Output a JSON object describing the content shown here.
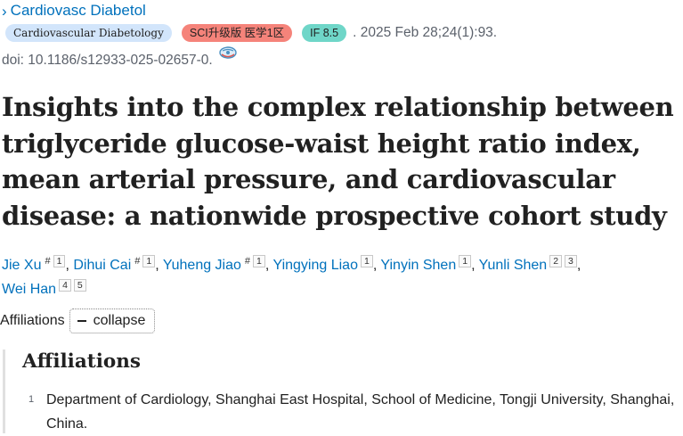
{
  "journal": {
    "chevron": "›",
    "link": "Cardiovasc Diabetol"
  },
  "badges": {
    "journal": "Cardiovascular Diabetology",
    "sci": "SCI升级版 医学1区",
    "if": "IF 8.5"
  },
  "pubdate": ". 2025 Feb 28;24(1):93.",
  "doi": "doi: 10.1186/s12933-025-02657-0.",
  "title": "Insights into the complex relationship between triglyceride glucose-waist height ratio index, mean arterial pressure, and cardiovascular disease: a nationwide prospective cohort study",
  "authors": [
    {
      "name": "Jie Xu",
      "marks": [
        "#",
        "1"
      ]
    },
    {
      "name": "Dihui Cai",
      "marks": [
        "#",
        "1"
      ]
    },
    {
      "name": "Yuheng Jiao",
      "marks": [
        "#",
        "1"
      ]
    },
    {
      "name": "Yingying Liao",
      "marks": [
        "1"
      ]
    },
    {
      "name": "Yinyin Shen",
      "marks": [
        "1"
      ]
    },
    {
      "name": "Yunli Shen",
      "marks": [
        "2",
        "3"
      ]
    },
    {
      "name": "Wei Han",
      "marks": [
        "4",
        "5"
      ]
    }
  ],
  "affiliations_label": "Affiliations",
  "collapse_label": "collapse",
  "affiliations_heading": "Affiliations",
  "affiliations": [
    {
      "num": "1",
      "text": "Department of Cardiology, Shanghai East Hospital, School of Medicine, Tongji University, Shanghai, China."
    }
  ],
  "icons": {
    "doi": "cite-icon",
    "chevron": "chevron-right-icon"
  }
}
